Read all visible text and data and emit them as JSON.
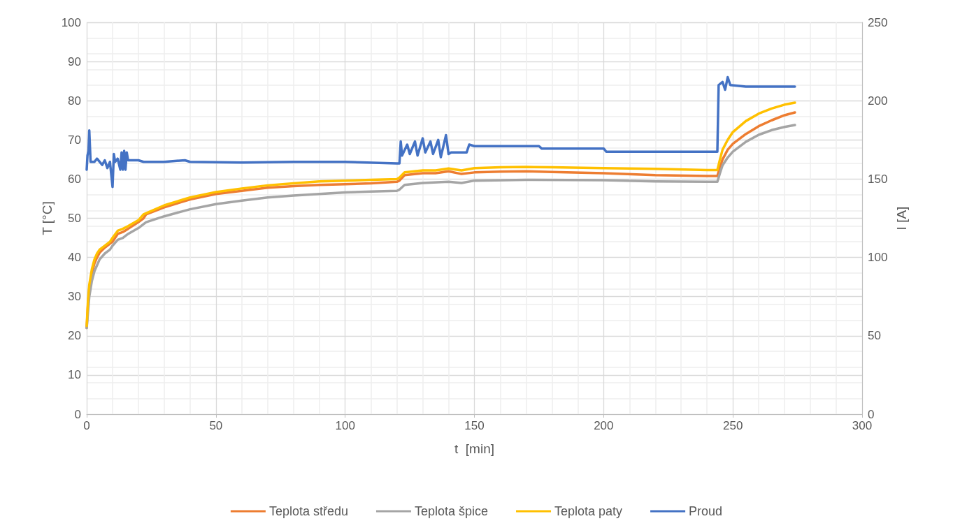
{
  "chart_data": {
    "type": "line",
    "xlabel": "t  [min]",
    "ylabel": "T [°C]",
    "y2label": "I [A]",
    "xlim": [
      0,
      300
    ],
    "xticks": [
      0,
      50,
      100,
      150,
      200,
      250,
      300
    ],
    "ylim": [
      0,
      100
    ],
    "yticks": [
      0,
      10,
      20,
      30,
      40,
      50,
      60,
      70,
      80,
      90,
      100
    ],
    "y2lim": [
      0,
      250
    ],
    "y2ticks": [
      0,
      50,
      100,
      150,
      200,
      250
    ],
    "grid": true,
    "legend": "bottom",
    "marker": "none",
    "line_style": "solid",
    "series": [
      {
        "name": "Teplota středu",
        "color": "#ed7d31",
        "x": [
          0,
          0.5,
          1,
          2,
          3,
          4,
          5,
          7,
          9,
          10,
          12,
          14,
          16,
          20,
          22,
          23,
          30,
          40,
          50,
          60,
          70,
          80,
          90,
          100,
          110,
          120,
          121,
          123,
          130,
          135,
          140,
          145,
          150,
          160,
          170,
          180,
          200,
          220,
          240,
          244,
          245,
          246,
          248,
          250,
          255,
          260,
          265,
          270,
          274
        ],
        "values": [
          22,
          28,
          32,
          36,
          38.5,
          40,
          41.2,
          42.5,
          43.5,
          44,
          46,
          46.5,
          47.3,
          49,
          50,
          51,
          52.8,
          54.8,
          56.2,
          57,
          57.8,
          58.2,
          58.5,
          58.7,
          58.9,
          59.3,
          59.6,
          61,
          61.5,
          61.5,
          62,
          61.3,
          61.7,
          61.9,
          62,
          61.8,
          61.5,
          61,
          60.8,
          60.8,
          63,
          65,
          67.5,
          69,
          71.5,
          73.5,
          75,
          76.3,
          77
        ]
      },
      {
        "name": "Teplota špice",
        "color": "#a5a5a5",
        "x": [
          0,
          0.5,
          1,
          2,
          3,
          4,
          5,
          7,
          9,
          10,
          12,
          14,
          16,
          20,
          22,
          23,
          30,
          40,
          50,
          60,
          70,
          80,
          90,
          100,
          110,
          120,
          121,
          123,
          130,
          140,
          145,
          150,
          170,
          200,
          220,
          240,
          244,
          245,
          246,
          248,
          250,
          255,
          260,
          265,
          270,
          274
        ],
        "values": [
          22,
          26,
          30,
          34,
          36.5,
          38,
          39.5,
          41,
          42,
          43,
          44.5,
          45,
          46,
          47.5,
          48.5,
          49,
          50.5,
          52.3,
          53.6,
          54.5,
          55.3,
          55.8,
          56.2,
          56.6,
          56.8,
          57,
          57.3,
          58.5,
          59,
          59.3,
          59,
          59.6,
          59.8,
          59.7,
          59.4,
          59.3,
          59.3,
          61.5,
          63.5,
          65.5,
          67,
          69.5,
          71.3,
          72.5,
          73.3,
          73.8
        ]
      },
      {
        "name": "Teplota paty",
        "color": "#ffc000",
        "x": [
          0,
          0.5,
          1,
          2,
          3,
          4,
          5,
          7,
          9,
          10,
          12,
          14,
          16,
          20,
          22,
          30,
          40,
          50,
          60,
          70,
          80,
          90,
          100,
          110,
          120,
          121,
          123,
          130,
          135,
          140,
          145,
          150,
          160,
          170,
          180,
          200,
          220,
          240,
          244,
          245,
          246,
          248,
          250,
          255,
          260,
          265,
          270,
          274
        ],
        "values": [
          22.5,
          29,
          33,
          37,
          39.5,
          41,
          42,
          43,
          44,
          45,
          46.8,
          47.3,
          48,
          49.5,
          51,
          53.3,
          55.3,
          56.7,
          57.6,
          58.4,
          58.9,
          59.4,
          59.6,
          59.8,
          60,
          60.4,
          61.7,
          62.2,
          62.2,
          62.7,
          62.2,
          62.8,
          63,
          63.1,
          63,
          62.8,
          62.6,
          62.3,
          62.3,
          65,
          67.5,
          70,
          72,
          74.8,
          76.7,
          78,
          79,
          79.5
        ]
      },
      {
        "name": "Proud",
        "color": "#4472c4",
        "axis": "y2",
        "x": [
          0,
          0.3,
          0.7,
          1,
          1.5,
          3,
          4,
          5,
          6,
          7,
          8,
          9,
          10,
          10.5,
          11,
          12,
          13,
          13.5,
          14,
          14.5,
          15,
          15.5,
          16,
          20,
          22,
          30,
          38,
          40,
          60,
          80,
          100,
          120,
          121,
          121.5,
          122,
          124,
          125,
          127,
          128,
          130,
          131,
          133,
          134,
          136,
          137,
          139,
          140,
          141,
          147,
          148,
          150,
          175,
          176,
          200,
          201,
          244,
          244.5,
          246,
          247,
          248,
          249,
          255,
          265,
          274
        ],
        "values": [
          156,
          165,
          168,
          181,
          161,
          161,
          163,
          161,
          159,
          162,
          157,
          161,
          145,
          166,
          161,
          163,
          156,
          167,
          156,
          168,
          156,
          167,
          162,
          162,
          161,
          161,
          162,
          161,
          160.5,
          161,
          161,
          160,
          160,
          174,
          165,
          172,
          166,
          174,
          165,
          176,
          167,
          174,
          166,
          175,
          164,
          178,
          166,
          167,
          167,
          172,
          171,
          171,
          169.5,
          169.5,
          167.5,
          167.5,
          210,
          212,
          207,
          215,
          210,
          209,
          209,
          209
        ]
      }
    ]
  }
}
